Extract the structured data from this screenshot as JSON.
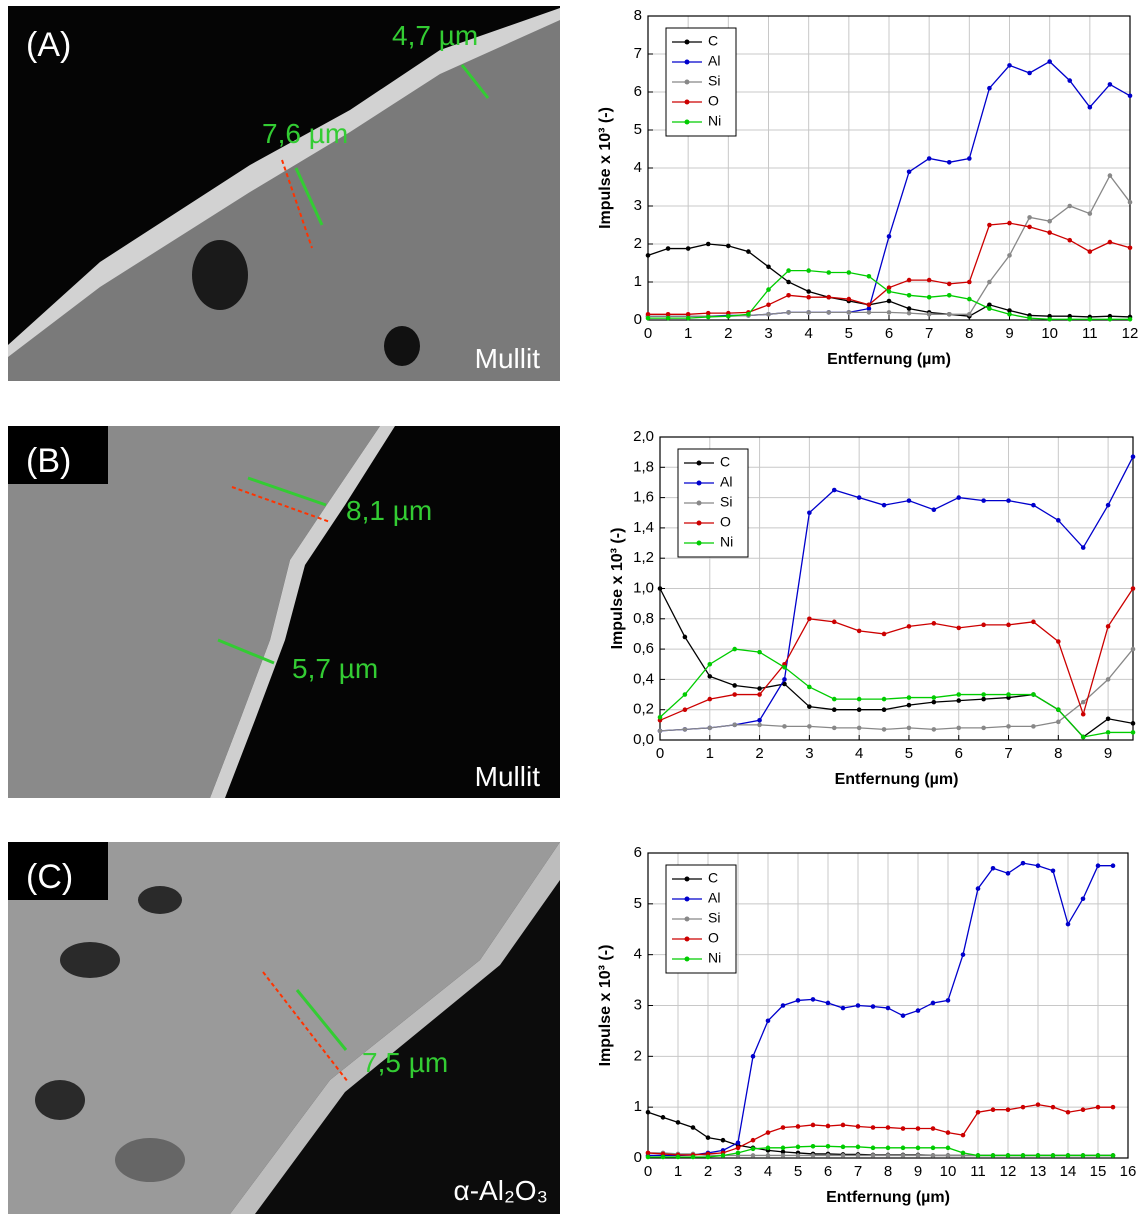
{
  "images": [
    {
      "label": "(A)",
      "material": "Mullit",
      "measurements": [
        "4,7 µm",
        "7,6 µm"
      ]
    },
    {
      "label": "(B)",
      "material": "Mullit",
      "measurements": [
        "8,1 µm",
        "5,7 µm"
      ]
    },
    {
      "label": "(C)",
      "material": "α-Al₂O₃",
      "measurements": [
        "7,5 µm"
      ]
    }
  ],
  "chart_data": [
    {
      "type": "line",
      "xlabel": "Entfernung (µm)",
      "ylabel": "Impulse x 10³ (-)",
      "grid": true,
      "legend": "upper left",
      "xlim": [
        0,
        12
      ],
      "xticks": [
        0,
        1,
        2,
        3,
        4,
        5,
        6,
        7,
        8,
        9,
        10,
        11,
        12
      ],
      "ylim": [
        0,
        8
      ],
      "yticks": [
        0,
        1,
        2,
        3,
        4,
        5,
        6,
        7,
        8
      ],
      "x": [
        0,
        0.5,
        1,
        1.5,
        2,
        2.5,
        3,
        3.5,
        4,
        4.5,
        5,
        5.5,
        6,
        6.5,
        7,
        7.5,
        8,
        8.5,
        9,
        9.5,
        10,
        10.5,
        11,
        11.5,
        12
      ],
      "series": [
        {
          "name": "C",
          "color": "#000000",
          "values": [
            1.7,
            1.88,
            1.88,
            2.0,
            1.95,
            1.8,
            1.4,
            1.0,
            0.75,
            0.6,
            0.5,
            0.4,
            0.5,
            0.3,
            0.2,
            0.15,
            0.1,
            0.4,
            0.25,
            0.12,
            0.1,
            0.1,
            0.08,
            0.1,
            0.08
          ]
        },
        {
          "name": "Al",
          "color": "#0000cc",
          "values": [
            0.1,
            0.1,
            0.1,
            0.1,
            0.12,
            0.12,
            0.15,
            0.2,
            0.2,
            0.2,
            0.2,
            0.3,
            2.2,
            3.9,
            4.25,
            4.15,
            4.25,
            6.1,
            6.7,
            6.5,
            6.8,
            6.3,
            5.6,
            6.2,
            5.9
          ]
        },
        {
          "name": "Si",
          "color": "#888888",
          "values": [
            0.1,
            0.1,
            0.1,
            0.1,
            0.1,
            0.12,
            0.15,
            0.2,
            0.2,
            0.2,
            0.2,
            0.2,
            0.2,
            0.18,
            0.15,
            0.15,
            0.15,
            1.0,
            1.7,
            2.7,
            2.6,
            3.0,
            2.8,
            3.8,
            3.1
          ]
        },
        {
          "name": "O",
          "color": "#cc0000",
          "values": [
            0.15,
            0.15,
            0.15,
            0.18,
            0.18,
            0.2,
            0.4,
            0.65,
            0.6,
            0.6,
            0.55,
            0.4,
            0.85,
            1.05,
            1.05,
            0.95,
            1.0,
            2.5,
            2.55,
            2.45,
            2.3,
            2.1,
            1.8,
            2.05,
            1.9
          ]
        },
        {
          "name": "Ni",
          "color": "#00cc00",
          "values": [
            0.05,
            0.05,
            0.05,
            0.08,
            0.1,
            0.15,
            0.8,
            1.3,
            1.3,
            1.25,
            1.25,
            1.15,
            0.75,
            0.65,
            0.6,
            0.65,
            0.55,
            0.3,
            0.15,
            0.05,
            0.02,
            0.02,
            0.02,
            0.02,
            0.02
          ]
        }
      ]
    },
    {
      "type": "line",
      "xlabel": "Entfernung (µm)",
      "ylabel": "Impulse x 10³ (-)",
      "grid": true,
      "legend": "upper left",
      "xlim": [
        0,
        9.5
      ],
      "xticks": [
        0,
        1,
        2,
        3,
        4,
        5,
        6,
        7,
        8,
        9
      ],
      "ylim": [
        0,
        2
      ],
      "yticks": [
        {
          "value": 0,
          "label": "0,0"
        },
        {
          "value": 0.2,
          "label": "0,2"
        },
        {
          "value": 0.4,
          "label": "0,4"
        },
        {
          "value": 0.6,
          "label": "0,6"
        },
        {
          "value": 0.8,
          "label": "0,8"
        },
        {
          "value": 1.0,
          "label": "1,0"
        },
        {
          "value": 1.2,
          "label": "1,2"
        },
        {
          "value": 1.4,
          "label": "1,4"
        },
        {
          "value": 1.6,
          "label": "1,6"
        },
        {
          "value": 1.8,
          "label": "1,8"
        },
        {
          "value": 2.0,
          "label": "2,0"
        }
      ],
      "x": [
        0,
        0.5,
        1,
        1.5,
        2,
        2.5,
        3,
        3.5,
        4,
        4.5,
        5,
        5.5,
        6,
        6.5,
        7,
        7.5,
        8,
        8.5,
        9,
        9.5
      ],
      "series": [
        {
          "name": "C",
          "color": "#000000",
          "values": [
            1.0,
            0.68,
            0.42,
            0.36,
            0.34,
            0.37,
            0.22,
            0.2,
            0.2,
            0.2,
            0.23,
            0.25,
            0.26,
            0.27,
            0.28,
            0.3,
            0.2,
            0.02,
            0.14,
            0.11
          ]
        },
        {
          "name": "Al",
          "color": "#0000cc",
          "values": [
            0.06,
            0.07,
            0.08,
            0.1,
            0.13,
            0.4,
            1.5,
            1.65,
            1.6,
            1.55,
            1.58,
            1.52,
            1.6,
            1.58,
            1.58,
            1.55,
            1.45,
            1.27,
            1.55,
            1.87
          ]
        },
        {
          "name": "Si",
          "color": "#888888",
          "values": [
            0.06,
            0.07,
            0.08,
            0.1,
            0.1,
            0.09,
            0.09,
            0.08,
            0.08,
            0.07,
            0.08,
            0.07,
            0.08,
            0.08,
            0.09,
            0.09,
            0.12,
            0.25,
            0.4,
            0.6
          ]
        },
        {
          "name": "O",
          "color": "#cc0000",
          "values": [
            0.13,
            0.2,
            0.27,
            0.3,
            0.3,
            0.5,
            0.8,
            0.78,
            0.72,
            0.7,
            0.75,
            0.77,
            0.74,
            0.76,
            0.76,
            0.78,
            0.65,
            0.17,
            0.75,
            1.0
          ]
        },
        {
          "name": "Ni",
          "color": "#00cc00",
          "values": [
            0.15,
            0.3,
            0.5,
            0.6,
            0.58,
            0.48,
            0.35,
            0.27,
            0.27,
            0.27,
            0.28,
            0.28,
            0.3,
            0.3,
            0.3,
            0.3,
            0.2,
            0.02,
            0.05,
            0.05
          ]
        }
      ]
    },
    {
      "type": "line",
      "xlabel": "Entfernung (µm)",
      "ylabel": "Impulse x 10³ (-)",
      "grid": true,
      "legend": "upper left",
      "xlim": [
        0,
        16
      ],
      "xticks": [
        0,
        1,
        2,
        3,
        4,
        5,
        6,
        7,
        8,
        9,
        10,
        11,
        12,
        13,
        14,
        15,
        16
      ],
      "ylim": [
        0,
        6
      ],
      "yticks": [
        0,
        1,
        2,
        3,
        4,
        5,
        6
      ],
      "x": [
        0,
        0.5,
        1,
        1.5,
        2,
        2.5,
        3,
        3.5,
        4,
        4.5,
        5,
        5.5,
        6,
        6.5,
        7,
        7.5,
        8,
        8.5,
        9,
        9.5,
        10,
        10.5,
        11,
        11.5,
        12,
        12.5,
        13,
        13.5,
        14,
        14.5,
        15,
        15.5
      ],
      "series": [
        {
          "name": "C",
          "color": "#000000",
          "values": [
            0.9,
            0.8,
            0.7,
            0.6,
            0.4,
            0.35,
            0.25,
            0.2,
            0.15,
            0.12,
            0.1,
            0.08,
            0.08,
            0.07,
            0.07,
            0.06,
            0.06,
            0.06,
            0.06,
            0.05,
            0.05,
            0.05,
            0.05,
            0.05,
            0.05,
            0.05,
            0.05,
            0.05,
            0.05,
            0.05,
            0.05,
            0.05
          ]
        },
        {
          "name": "Al",
          "color": "#0000cc",
          "values": [
            0.05,
            0.05,
            0.05,
            0.06,
            0.1,
            0.15,
            0.3,
            2.0,
            2.7,
            3.0,
            3.1,
            3.12,
            3.05,
            2.95,
            3.0,
            2.98,
            2.95,
            2.8,
            2.9,
            3.05,
            3.1,
            4.0,
            5.3,
            5.7,
            5.6,
            5.8,
            5.75,
            5.65,
            4.6,
            5.1,
            5.75,
            5.75
          ]
        },
        {
          "name": "Si",
          "color": "#888888",
          "values": [
            0.1,
            0.1,
            0.08,
            0.08,
            0.05,
            0.05,
            0.05,
            0.05,
            0.05,
            0.05,
            0.05,
            0.05,
            0.05,
            0.05,
            0.05,
            0.05,
            0.05,
            0.05,
            0.05,
            0.05,
            0.05,
            0.05,
            0.05,
            0.05,
            0.05,
            0.05,
            0.05,
            0.05,
            0.05,
            0.05,
            0.05,
            0.05
          ]
        },
        {
          "name": "O",
          "color": "#cc0000",
          "values": [
            0.1,
            0.08,
            0.06,
            0.06,
            0.08,
            0.1,
            0.2,
            0.35,
            0.5,
            0.6,
            0.62,
            0.65,
            0.63,
            0.65,
            0.62,
            0.6,
            0.6,
            0.58,
            0.58,
            0.58,
            0.5,
            0.45,
            0.9,
            0.95,
            0.95,
            1.0,
            1.05,
            1.0,
            0.9,
            0.95,
            1.0,
            1.0
          ]
        },
        {
          "name": "Ni",
          "color": "#00cc00",
          "values": [
            0.02,
            0.02,
            0.02,
            0.02,
            0.02,
            0.05,
            0.1,
            0.18,
            0.2,
            0.2,
            0.22,
            0.23,
            0.23,
            0.22,
            0.22,
            0.2,
            0.2,
            0.2,
            0.2,
            0.2,
            0.2,
            0.1,
            0.05,
            0.05,
            0.05,
            0.05,
            0.05,
            0.05,
            0.05,
            0.05,
            0.05,
            0.05
          ]
        }
      ]
    }
  ]
}
